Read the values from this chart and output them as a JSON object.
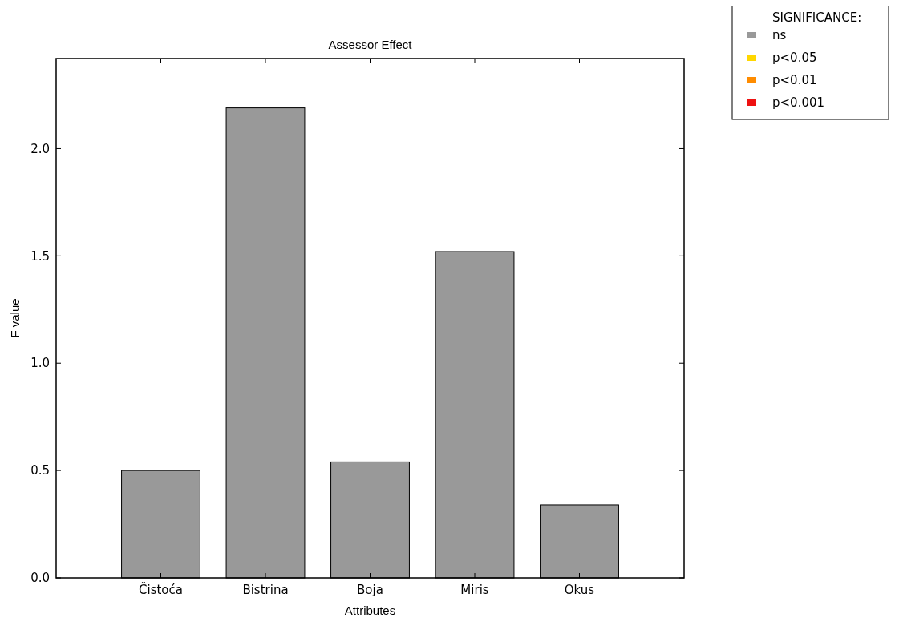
{
  "chart_data": {
    "type": "bar",
    "title": "Assessor Effect",
    "xlabel": "Attributes",
    "ylabel": "F value",
    "legend_title": "SIGNIFICANCE:",
    "categories": [
      "Čistoća",
      "Bistrina",
      "Boja",
      "Miris",
      "Okus"
    ],
    "series": [
      {
        "name": "ns",
        "color": "#999999",
        "values": [
          0.5,
          2.19,
          0.54,
          1.52,
          0.34
        ]
      },
      {
        "name": "p<0.05",
        "color": "#ffd700",
        "values": [
          null,
          null,
          null,
          null,
          null
        ]
      },
      {
        "name": "p<0.01",
        "color": "#ff8c00",
        "values": [
          null,
          null,
          null,
          null,
          null
        ]
      },
      {
        "name": "p<0.001",
        "color": "#ee1111",
        "values": [
          null,
          null,
          null,
          null,
          null
        ]
      }
    ],
    "ylim": [
      0,
      2.42
    ],
    "yticks": [
      {
        "value": 0,
        "label": "0.0"
      },
      {
        "value": 0.5,
        "label": "0.5"
      },
      {
        "value": 1,
        "label": "1.0"
      },
      {
        "value": 1.5,
        "label": "1.5"
      },
      {
        "value": 2,
        "label": "2.0"
      }
    ],
    "legend": "top right"
  }
}
